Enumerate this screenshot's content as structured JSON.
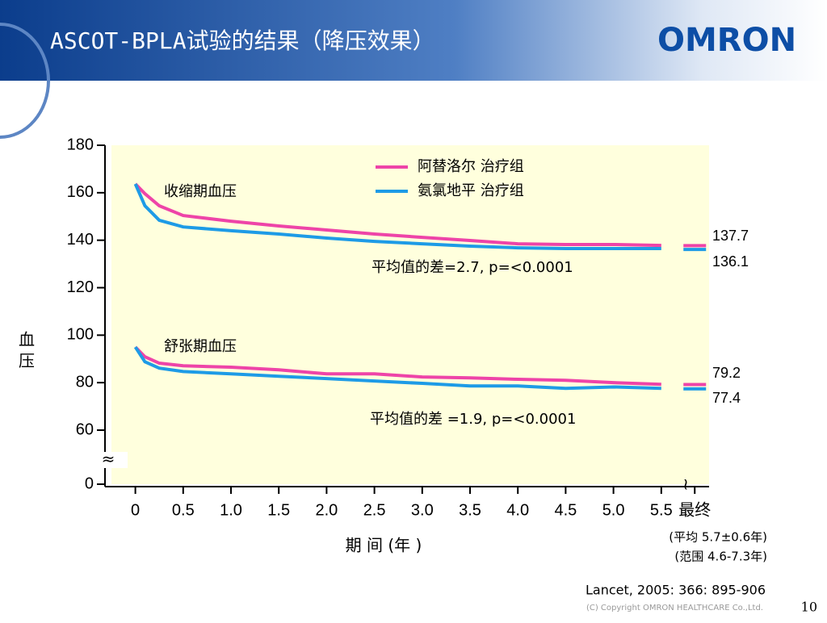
{
  "title": "ASCOT-BPLA试验的结果（降压效果）",
  "logo": "OMRON",
  "page_number": "10",
  "copyright": "(C) Copyright OMRON HEALTHCARE Co.,Ltd.",
  "chart_data": {
    "type": "line",
    "y_label": "血 压",
    "x_label": "期 间 (年 )",
    "x": [
      0,
      0.1,
      0.25,
      0.5,
      1,
      1.5,
      2,
      2.5,
      3,
      3.5,
      4,
      4.5,
      5,
      5.5
    ],
    "series": [
      {
        "name": "阿替洛尔 治疗组",
        "color": "#ee44a8",
        "values": [
          163.7,
          159.6,
          154.5,
          150.4,
          148,
          146,
          144.3,
          142.6,
          141.2,
          139.9,
          138.5,
          138.2,
          138.2,
          137.8
        ],
        "diastolic": [
          95,
          90.9,
          88.2,
          87.1,
          86.5,
          85.4,
          83.7,
          83.7,
          82.4,
          82,
          81.4,
          81,
          80,
          79.3
        ],
        "final": 137.7,
        "final_diastolic": 79.2
      },
      {
        "name": "氨氯地平 治疗组",
        "color": "#1e9be6",
        "values": [
          163.7,
          154.5,
          148.4,
          145.6,
          144,
          142.6,
          140.9,
          139.5,
          138.5,
          137.5,
          136.8,
          136.5,
          136.5,
          136.5
        ],
        "diastolic": [
          95,
          88.8,
          86.1,
          84.7,
          83.7,
          82.7,
          81.7,
          80.7,
          79.7,
          78.6,
          78.6,
          77.6,
          78.2,
          77.6
        ],
        "final": 136.1,
        "final_diastolic": 77.4
      }
    ],
    "ylim": [
      0,
      180
    ],
    "yticks": [
      0,
      60,
      80,
      100,
      120,
      140,
      160,
      180
    ],
    "xlim": [
      -0.25,
      6
    ],
    "xticks": [
      0,
      0.5,
      {
        "value": 1,
        "label": "1.0"
      },
      1.5,
      {
        "value": 2,
        "label": "2.0"
      },
      2.5,
      {
        "value": 3,
        "label": "3.0"
      },
      3.5,
      {
        "value": 4,
        "label": "4.0"
      },
      4.5,
      {
        "value": 5,
        "label": "5.0"
      },
      5.5,
      {
        "value": 5.85,
        "label": "最终"
      }
    ],
    "annotations": {
      "systolic": "收缩期血压",
      "diastolic": "舒张期血压",
      "systolic_diff": "平均值的差=2.7, p=<0.0001",
      "diastolic_diff": "平均值的差 =1.9, p=<0.0001"
    },
    "notes": [
      "(平均 5.7±0.6年)",
      "(范围  4.6-7.3年)"
    ],
    "source": "Lancet, 2005: 366: 895-906"
  }
}
